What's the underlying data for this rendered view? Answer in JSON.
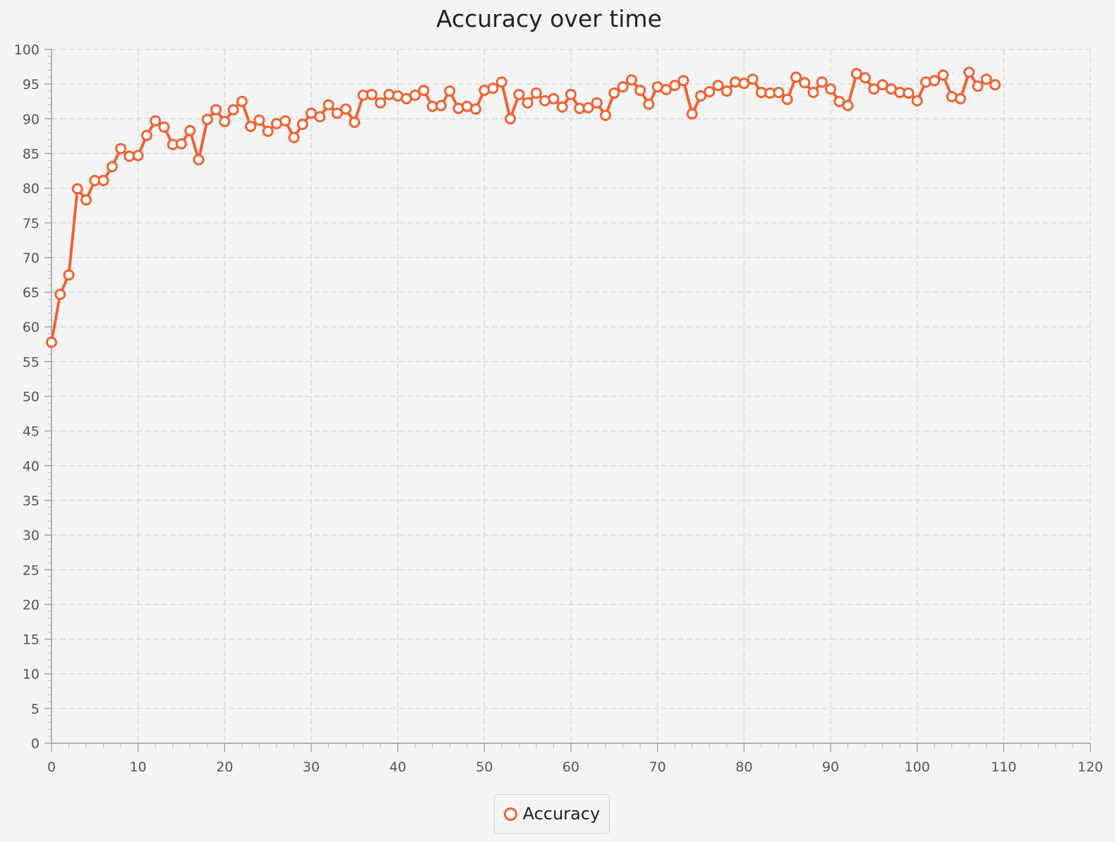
{
  "chart_data": {
    "type": "line",
    "title": "Accuracy over time",
    "xlabel": "",
    "ylabel": "",
    "xlim": [
      0,
      120
    ],
    "ylim": [
      0,
      100
    ],
    "x_ticks": [
      0,
      10,
      20,
      30,
      40,
      50,
      60,
      70,
      80,
      90,
      100,
      110,
      120
    ],
    "y_ticks": [
      0,
      5,
      10,
      15,
      20,
      25,
      30,
      35,
      40,
      45,
      50,
      55,
      60,
      65,
      70,
      75,
      80,
      85,
      90,
      95,
      100
    ],
    "grid": true,
    "legend_position": "bottom",
    "series": [
      {
        "name": "Accuracy",
        "color": "#f06232",
        "x": [
          0,
          1,
          2,
          3,
          4,
          5,
          6,
          7,
          8,
          9,
          10,
          11,
          12,
          13,
          14,
          15,
          16,
          17,
          18,
          19,
          20,
          21,
          22,
          23,
          24,
          25,
          26,
          27,
          28,
          29,
          30,
          31,
          32,
          33,
          34,
          35,
          36,
          37,
          38,
          39,
          40,
          41,
          42,
          43,
          44,
          45,
          46,
          47,
          48,
          49,
          50,
          51,
          52,
          53,
          54,
          55,
          56,
          57,
          58,
          59,
          60,
          61,
          62,
          63,
          64,
          65,
          66,
          67,
          68,
          69,
          70,
          71,
          72,
          73,
          74,
          75,
          76,
          77,
          78,
          79,
          80,
          81,
          82,
          83,
          84,
          85,
          86,
          87,
          88,
          89,
          90,
          91,
          92,
          93,
          94,
          95,
          96,
          97,
          98,
          99,
          100,
          101,
          102,
          103,
          104,
          105,
          106,
          107,
          108,
          109
        ],
        "values": [
          57.8,
          64.7,
          67.5,
          79.9,
          78.3,
          81.1,
          81.1,
          83.1,
          85.7,
          84.6,
          84.7,
          87.6,
          89.7,
          88.8,
          86.3,
          86.4,
          88.3,
          84.1,
          89.9,
          91.3,
          89.6,
          91.3,
          92.5,
          88.9,
          89.8,
          88.2,
          89.3,
          89.7,
          87.3,
          89.2,
          90.8,
          90.3,
          92.0,
          90.8,
          91.4,
          89.5,
          93.4,
          93.5,
          92.3,
          93.5,
          93.3,
          92.9,
          93.4,
          94.1,
          91.8,
          91.9,
          94.0,
          91.5,
          91.8,
          91.4,
          94.1,
          94.4,
          95.3,
          90.0,
          93.5,
          92.3,
          93.7,
          92.6,
          92.9,
          91.7,
          93.5,
          91.5,
          91.6,
          92.3,
          90.5,
          93.7,
          94.6,
          95.6,
          94.1,
          92.1,
          94.6,
          94.2,
          94.8,
          95.5,
          90.7,
          93.3,
          93.9,
          94.8,
          94.0,
          95.3,
          95.1,
          95.7,
          93.8,
          93.7,
          93.8,
          92.8,
          96.0,
          95.2,
          93.8,
          95.3,
          94.3,
          92.5,
          91.9,
          96.5,
          95.9,
          94.3,
          94.9,
          94.3,
          93.8,
          93.7,
          92.6,
          95.3,
          95.5,
          96.3,
          93.2,
          92.9,
          96.7,
          94.7,
          95.7,
          94.9
        ]
      }
    ]
  }
}
